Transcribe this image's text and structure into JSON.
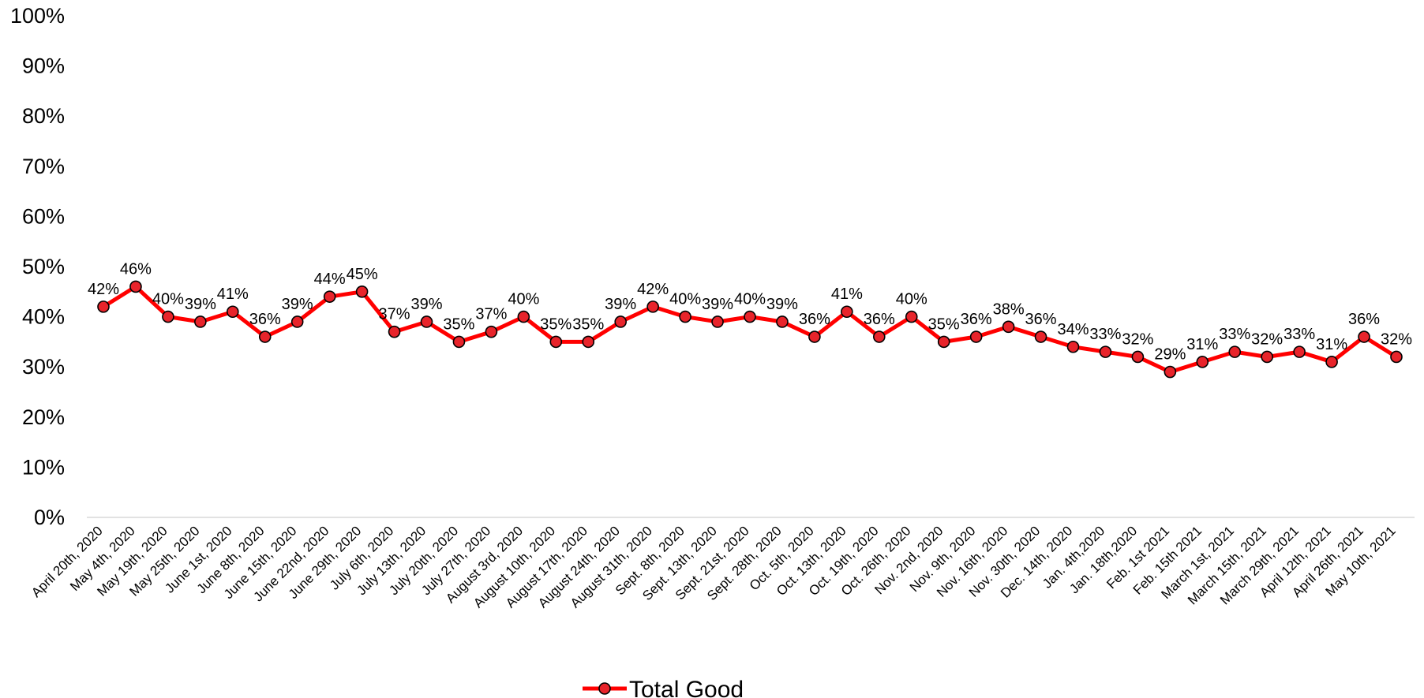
{
  "chart_data": {
    "type": "line",
    "title": "",
    "xlabel": "",
    "ylabel": "",
    "ylim": [
      0,
      100
    ],
    "yticks": [
      "0%",
      "10%",
      "20%",
      "30%",
      "40%",
      "50%",
      "60%",
      "70%",
      "80%",
      "90%",
      "100%"
    ],
    "grid": false,
    "legend_position": "bottom",
    "categories": [
      "April 20th, 2020",
      "May 4th, 2020",
      "May 19th, 2020",
      "May 25th, 2020",
      "June 1st, 2020",
      "June 8th, 2020",
      "June 15th, 2020",
      "June 22nd, 2020",
      "June 29th, 2020",
      "July 6th, 2020",
      "July 13th, 2020",
      "July 20th, 2020",
      "July 27th, 2020",
      "August 3rd, 2020",
      "August 10th, 2020",
      "August 17th, 2020",
      "August 24th, 2020",
      "August 31th, 2020",
      "Sept. 8th, 2020",
      "Sept. 13th, 2020",
      "Sept. 21st, 2020",
      "Sept. 28th, 2020",
      "Oct. 5th, 2020",
      "Oct. 13th, 2020",
      "Oct. 19th, 2020",
      "Oct. 26th, 2020",
      "Nov. 2nd, 2020",
      "Nov. 9th, 2020",
      "Nov. 16th, 2020",
      "Nov. 30th, 2020",
      "Dec. 14th, 2020",
      "Jan. 4th,2020",
      "Jan. 18th,2020",
      "Feb. 1st 2021",
      "Feb. 15th 2021",
      "March 1st, 2021",
      "March 15th, 2021",
      "March 29th, 2021",
      "April 12th, 2021",
      "April 26th, 2021",
      "May 10th, 2021"
    ],
    "series": [
      {
        "name": "Total Good",
        "color": "#ff0000",
        "marker_color": "#e8242b",
        "values": [
          42,
          46,
          40,
          39,
          41,
          36,
          39,
          44,
          45,
          37,
          39,
          35,
          37,
          40,
          35,
          35,
          39,
          42,
          40,
          39,
          40,
          39,
          36,
          41,
          36,
          40,
          35,
          36,
          38,
          36,
          34,
          33,
          32,
          29,
          31,
          33,
          32,
          33,
          31,
          36,
          32
        ],
        "labels": [
          "42%",
          "46%",
          "40%",
          "39%",
          "41%",
          "36%",
          "39%",
          "44%",
          "45%",
          "37%",
          "39%",
          "35%",
          "37%",
          "40%",
          "35%",
          "35%",
          "39%",
          "42%",
          "40%",
          "39%",
          "40%",
          "39%",
          "36%",
          "41%",
          "36%",
          "40%",
          "35%",
          "36%",
          "38%",
          "36%",
          "34%",
          "33%",
          "32%",
          "29%",
          "31%",
          "33%",
          "32%",
          "33%",
          "31%",
          "36%",
          "32%"
        ]
      }
    ]
  }
}
